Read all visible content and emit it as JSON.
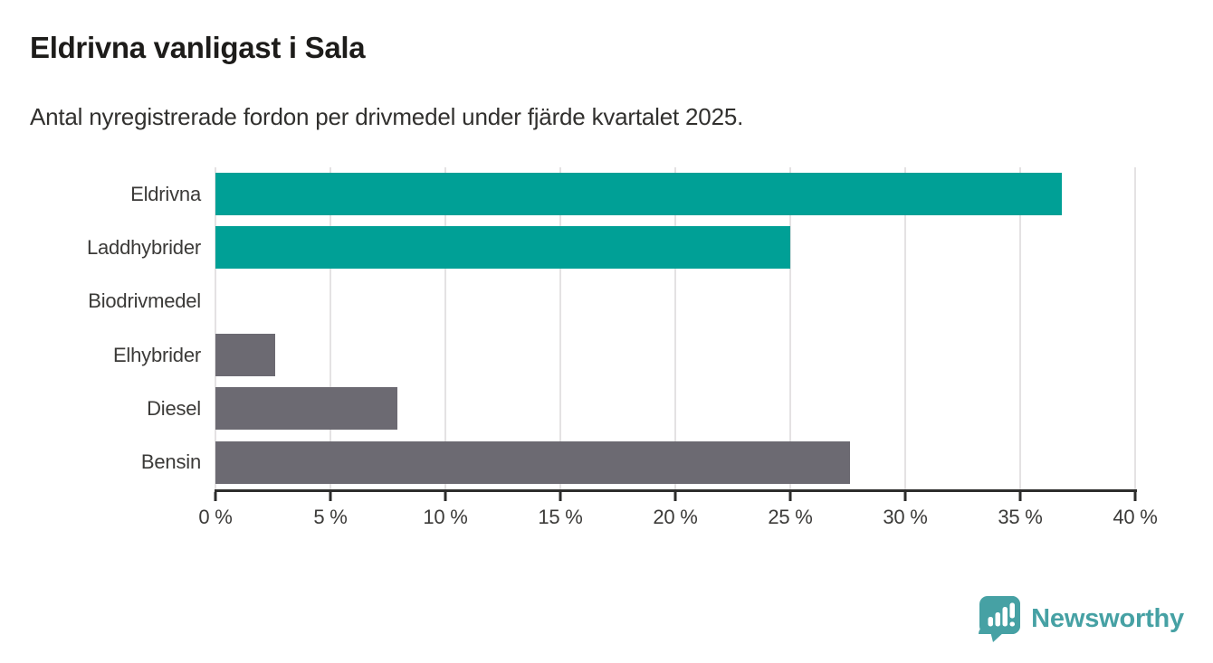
{
  "title": "Eldrivna vanligast i Sala",
  "subtitle": "Antal nyregistrerade fordon per drivmedel under fjärde kvartalet 2025.",
  "chart_data": {
    "type": "bar",
    "orientation": "horizontal",
    "title": "Eldrivna vanligast i Sala",
    "subtitle": "Antal nyregistrerade fordon per drivmedel under fjärde kvartalet 2025.",
    "categories": [
      "Eldrivna",
      "Laddhybrider",
      "Biodrivmedel",
      "Elhybrider",
      "Diesel",
      "Bensin"
    ],
    "values": [
      36.8,
      25.0,
      0.0,
      2.6,
      7.9,
      27.6
    ],
    "unit": "%",
    "bar_colors": [
      "#00a096",
      "#00a096",
      "#6c6a72",
      "#6c6a72",
      "#6c6a72",
      "#6c6a72"
    ],
    "xlabel": "",
    "ylabel": "",
    "xlim": [
      0,
      40
    ],
    "x_ticks": [
      0,
      5,
      10,
      15,
      20,
      25,
      30,
      35,
      40
    ],
    "x_tick_labels": [
      "0 %",
      "5 %",
      "10 %",
      "15 %",
      "20 %",
      "25 %",
      "30 %",
      "35 %",
      "40 %"
    ],
    "grid": true,
    "legend": false
  },
  "footer": {
    "brand": "Newsworthy"
  },
  "colors": {
    "teal_bar": "#00a096",
    "gray_bar": "#6c6a72",
    "brand_teal": "#46a1a4",
    "gridline": "#e4e2e3",
    "axis": "#2d2d2c",
    "title_text": "#1d1c1a",
    "label_text": "#3b3a38"
  }
}
